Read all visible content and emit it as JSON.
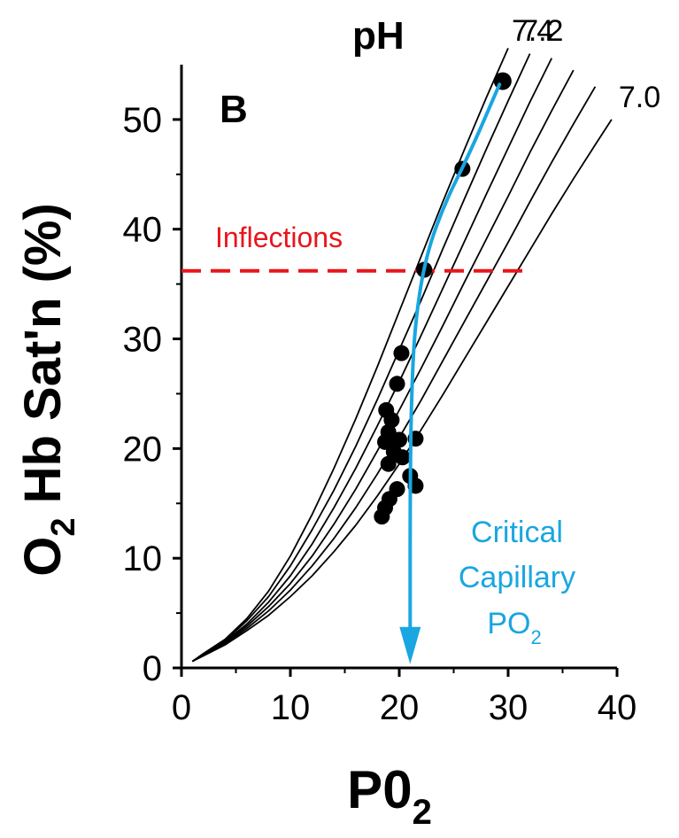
{
  "chart_data": {
    "type": "line",
    "panel_label": "B",
    "ph_header": "pH",
    "xlabel": "P0",
    "xlabel_sub": "2",
    "ylabel_main": "O",
    "ylabel_sub": "2",
    "ylabel_rest": " Hb Sat'n (%)",
    "xlim": [
      0,
      40
    ],
    "ylim": [
      0,
      55
    ],
    "x_ticks": [
      0,
      10,
      20,
      30,
      40
    ],
    "y_ticks": [
      0,
      10,
      20,
      30,
      40,
      50
    ],
    "grid": false,
    "series": [
      {
        "name": "7.4",
        "x": [
          1,
          2,
          4,
          6,
          8,
          10,
          12,
          14,
          16,
          18,
          20,
          22,
          24,
          26,
          28,
          30
        ],
        "y": [
          0.6,
          1.3,
          2.6,
          4.5,
          7.0,
          10.2,
          14.0,
          18.2,
          22.7,
          27.5,
          32.5,
          37.5,
          42.5,
          47.3,
          52.0,
          56.5
        ]
      },
      {
        "x": [
          1,
          2,
          4,
          6,
          8,
          10,
          12,
          14,
          16,
          18,
          20,
          22,
          24,
          26,
          28,
          30,
          32
        ],
        "y": [
          0.6,
          1.2,
          2.5,
          4.3,
          6.5,
          9.3,
          12.6,
          16.2,
          20.2,
          24.5,
          29.0,
          33.5,
          38.2,
          42.8,
          47.3,
          51.7,
          56.0
        ]
      },
      {
        "name": "7.2",
        "x": [
          1,
          2,
          4,
          6,
          8,
          10,
          12,
          14,
          16,
          18,
          20,
          22,
          24,
          26,
          28,
          30,
          32,
          34
        ],
        "y": [
          0.6,
          1.2,
          2.4,
          4.0,
          6.0,
          8.4,
          11.3,
          14.6,
          18.2,
          22.1,
          26.1,
          30.3,
          34.6,
          38.9,
          43.2,
          47.4,
          51.6,
          55.6
        ]
      },
      {
        "x": [
          1,
          2,
          4,
          6,
          8,
          10,
          12,
          14,
          16,
          18,
          20,
          22,
          24,
          26,
          28,
          30,
          32,
          34,
          36
        ],
        "y": [
          0.6,
          1.2,
          2.3,
          3.8,
          5.6,
          7.7,
          10.2,
          13.1,
          16.3,
          19.8,
          23.5,
          27.3,
          31.2,
          35.2,
          39.1,
          43.0,
          47.0,
          50.8,
          54.5
        ]
      },
      {
        "x": [
          1,
          2,
          4,
          6,
          8,
          10,
          12,
          14,
          16,
          18,
          20,
          22,
          24,
          26,
          28,
          30,
          32,
          34,
          36,
          38
        ],
        "y": [
          0.6,
          1.2,
          2.2,
          3.6,
          5.2,
          7.1,
          9.3,
          11.8,
          14.6,
          17.7,
          21.0,
          24.4,
          28.0,
          31.6,
          35.2,
          38.8,
          42.5,
          46.1,
          49.6,
          53.0
        ]
      },
      {
        "name": "7.0",
        "x": [
          1,
          2,
          4,
          6,
          8,
          10,
          12,
          14,
          16,
          18,
          20,
          22,
          24,
          26,
          28,
          30,
          32,
          34,
          36,
          38,
          39.5
        ],
        "y": [
          0.6,
          1.1,
          2.1,
          3.4,
          4.8,
          6.5,
          8.4,
          10.6,
          13.0,
          15.7,
          18.6,
          21.7,
          24.9,
          28.2,
          31.5,
          34.8,
          38.1,
          41.4,
          44.6,
          47.7,
          50.0
        ]
      }
    ],
    "points": [
      {
        "x": 29.5,
        "y": 53.5
      },
      {
        "x": 25.8,
        "y": 45.5
      },
      {
        "x": 22.3,
        "y": 36.3
      },
      {
        "x": 20.2,
        "y": 28.7
      },
      {
        "x": 19.8,
        "y": 25.9
      },
      {
        "x": 18.8,
        "y": 23.5
      },
      {
        "x": 19.3,
        "y": 22.6
      },
      {
        "x": 19.0,
        "y": 21.5
      },
      {
        "x": 18.7,
        "y": 20.6
      },
      {
        "x": 20.0,
        "y": 20.8
      },
      {
        "x": 21.5,
        "y": 20.9
      },
      {
        "x": 19.5,
        "y": 19.7
      },
      {
        "x": 20.3,
        "y": 19.2
      },
      {
        "x": 19.0,
        "y": 18.6
      },
      {
        "x": 21.0,
        "y": 17.5
      },
      {
        "x": 21.5,
        "y": 16.6
      },
      {
        "x": 19.8,
        "y": 16.3
      },
      {
        "x": 19.1,
        "y": 15.4
      },
      {
        "x": 18.7,
        "y": 14.6
      },
      {
        "x": 18.4,
        "y": 13.8
      }
    ],
    "inflection": {
      "label": "Inflections",
      "y": 36.2,
      "x_start": 0,
      "x_end": 32.2,
      "color": "#e8151b"
    },
    "critical": {
      "lines": [
        "Critical",
        "Capillary",
        "PO"
      ],
      "sub": "2",
      "x": 21.0,
      "color": "#1aa6e0",
      "path": [
        [
          29.2,
          53.2
        ],
        [
          26.5,
          47
        ],
        [
          24.0,
          42
        ],
        [
          22.3,
          37
        ],
        [
          21.4,
          31
        ],
        [
          21.1,
          24
        ],
        [
          21.0,
          16
        ],
        [
          21.0,
          3
        ],
        [
          21.0,
          0.5
        ]
      ]
    }
  }
}
